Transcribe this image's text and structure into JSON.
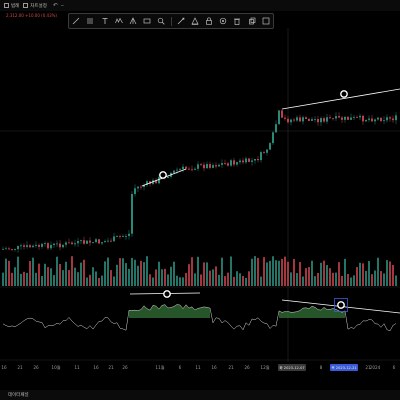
{
  "topbar": {
    "items": [
      {
        "label": "범례"
      },
      {
        "label": "차트설정"
      }
    ]
  },
  "info": {
    "text": "2,312.00 +10.00 (0.43%)"
  },
  "toolbar": {
    "tools": [
      "trend-line",
      "fib-retracement",
      "text",
      "elliott-wave",
      "pitchfork",
      "measure",
      "zoom",
      "brush",
      "rectangle",
      "lock",
      "visibility",
      "trash",
      "copy",
      "more"
    ]
  },
  "time_axis": {
    "labels": [
      "16",
      "21",
      "26",
      "10월",
      "11",
      "16",
      "21",
      "26",
      "11월",
      "6",
      "11",
      "16",
      "21",
      "26",
      "12월",
      "5",
      "8",
      "13",
      "18",
      "21",
      "2024",
      "6"
    ],
    "badges": [
      {
        "label": "화 2023-12-07"
      },
      {
        "label": "목 2023-12-21"
      }
    ]
  },
  "bottom": {
    "label": "데이터패널"
  },
  "colors": {
    "up": "#2a8a7a",
    "down": "#c0404a",
    "trendline": "#ffffff",
    "indicator_fill": "#2f6a34",
    "badge": "#3a5bd9"
  }
}
